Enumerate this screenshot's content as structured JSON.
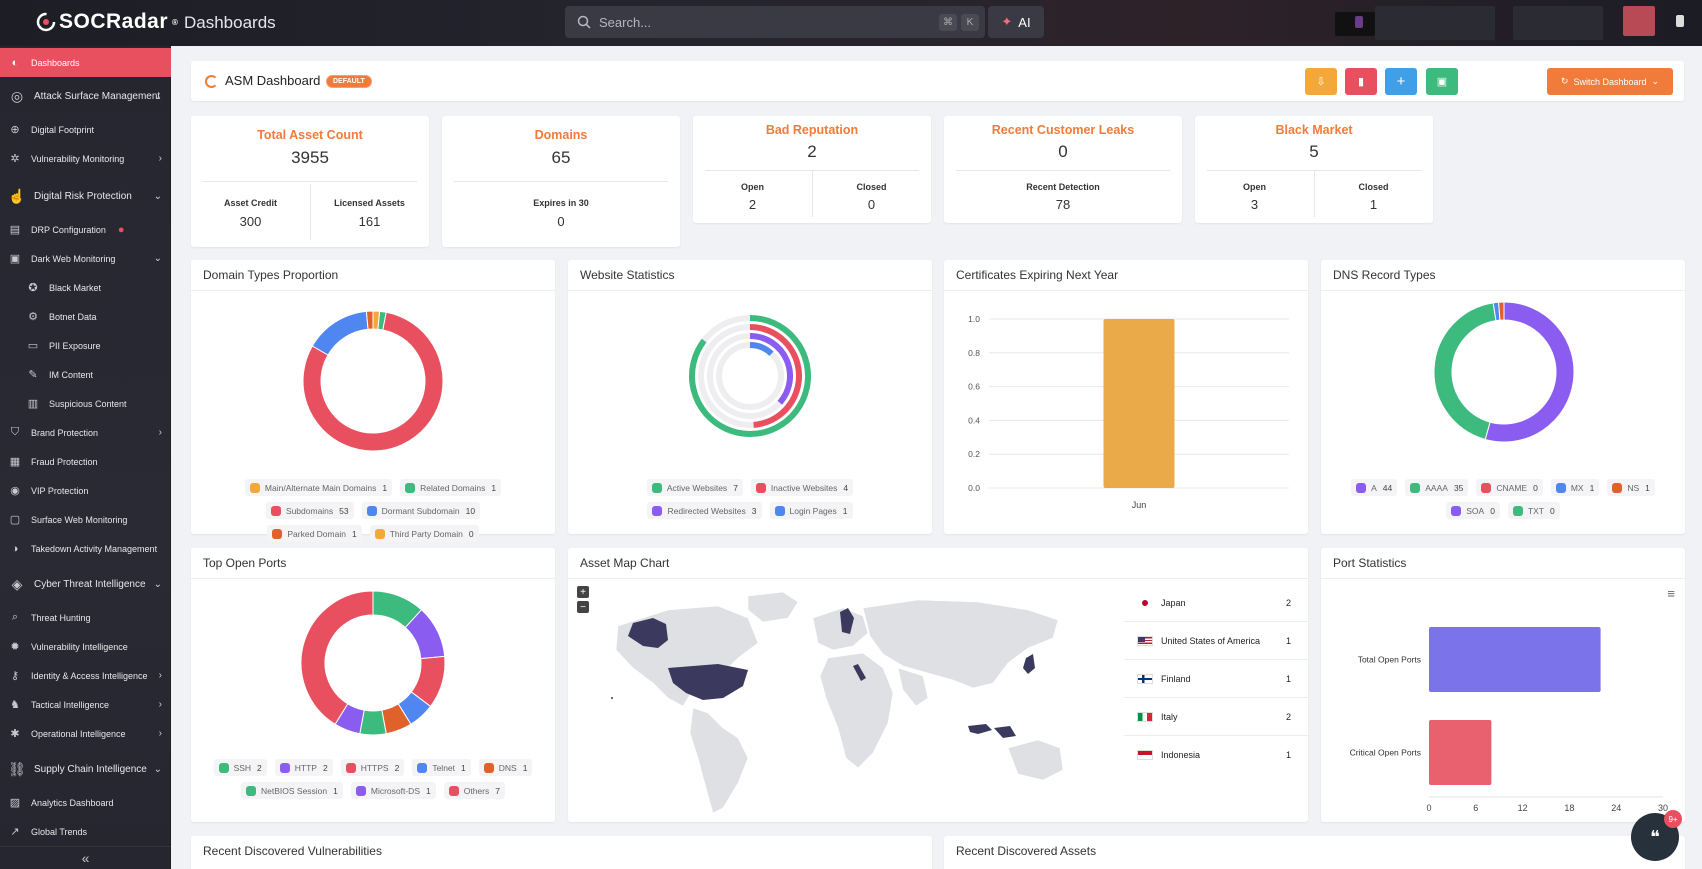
{
  "app": {
    "brand": "SOCRadar",
    "page_title": "Dashboards"
  },
  "search": {
    "placeholder": "Search...",
    "shortcut_cmd": "⌘",
    "shortcut_key": "K",
    "ai_label": "AI"
  },
  "sidebar": {
    "items": [
      {
        "label": "Dashboards",
        "icon": "radar-icon",
        "type": "active"
      },
      {
        "label": "Attack Surface Management",
        "icon": "target-icon",
        "type": "section",
        "chevron": "down"
      },
      {
        "label": "Digital Footprint",
        "icon": "globe-icon",
        "type": "item"
      },
      {
        "label": "Vulnerability Monitoring",
        "icon": "bug-icon",
        "type": "item",
        "chevron": "right"
      },
      {
        "label": "Digital Risk Protection",
        "icon": "fingerprint-icon",
        "type": "section",
        "chevron": "down"
      },
      {
        "label": "DRP Configuration",
        "icon": "config-icon",
        "type": "item",
        "dot": true
      },
      {
        "label": "Dark Web Monitoring",
        "icon": "mask-icon",
        "type": "item",
        "chevron": "down"
      },
      {
        "label": "Black Market",
        "icon": "market-icon",
        "type": "sub"
      },
      {
        "label": "Botnet Data",
        "icon": "botnet-icon",
        "type": "sub"
      },
      {
        "label": "PII Exposure",
        "icon": "id-card-icon",
        "type": "sub"
      },
      {
        "label": "IM Content",
        "icon": "chat-icon",
        "type": "sub"
      },
      {
        "label": "Suspicious Content",
        "icon": "file-icon",
        "type": "sub"
      },
      {
        "label": "Brand Protection",
        "icon": "shield-icon",
        "type": "item",
        "chevron": "right"
      },
      {
        "label": "Fraud Protection",
        "icon": "fraud-icon",
        "type": "item"
      },
      {
        "label": "VIP Protection",
        "icon": "vip-icon",
        "type": "item"
      },
      {
        "label": "Surface Web Monitoring",
        "icon": "monitor-icon",
        "type": "item"
      },
      {
        "label": "Takedown Activity Management",
        "icon": "takedown-icon",
        "type": "item"
      },
      {
        "label": "Cyber Threat Intelligence",
        "icon": "brain-icon",
        "type": "section",
        "chevron": "down"
      },
      {
        "label": "Threat Hunting",
        "icon": "search-icon",
        "type": "item"
      },
      {
        "label": "Vulnerability Intelligence",
        "icon": "gear-icon",
        "type": "item"
      },
      {
        "label": "Identity & Access Intelligence",
        "icon": "key-icon",
        "type": "item",
        "chevron": "right"
      },
      {
        "label": "Tactical Intelligence",
        "icon": "chess-icon",
        "type": "item",
        "chevron": "right"
      },
      {
        "label": "Operational Intelligence",
        "icon": "cog-icon",
        "type": "item",
        "chevron": "right"
      },
      {
        "label": "Supply Chain Intelligence",
        "icon": "chain-icon",
        "type": "section",
        "chevron": "down"
      },
      {
        "label": "Analytics Dashboard",
        "icon": "chart-icon",
        "type": "item"
      },
      {
        "label": "Global Trends",
        "icon": "trend-icon",
        "type": "item"
      }
    ]
  },
  "header": {
    "title": "ASM Dashboard",
    "badge": "DEFAULT",
    "switch_label": "Switch Dashboard",
    "colors": {
      "pin": "#f4a83a",
      "delete": "#e9505f",
      "add": "#3fa0e8",
      "save": "#3dba7d",
      "switch": "#f07b3a"
    }
  },
  "stats": {
    "total_asset": {
      "title": "Total Asset Count",
      "value": "3955",
      "l1": "Asset Credit",
      "v1": "300",
      "l2": "Licensed Assets",
      "v2": "161"
    },
    "domains": {
      "title": "Domains",
      "value": "65",
      "l1": "Expires in 30",
      "v1": "0"
    },
    "bad_rep": {
      "title": "Bad Reputation",
      "value": "2",
      "l1": "Open",
      "v1": "2",
      "l2": "Closed",
      "v2": "0"
    },
    "leaks": {
      "title": "Recent Customer Leaks",
      "value": "0",
      "l1": "Recent Detection",
      "v1": "78"
    },
    "black_market": {
      "title": "Black Market",
      "value": "5",
      "l1": "Open",
      "v1": "3",
      "l2": "Closed",
      "v2": "1"
    }
  },
  "cards": {
    "domain_types": "Domain Types Proportion",
    "website_stats": "Website Statistics",
    "certificates": "Certificates Expiring Next Year",
    "dns": "DNS Record Types",
    "ports": "Top Open Ports",
    "map": "Asset Map Chart",
    "port_stats": "Port Statistics",
    "recent_vulns": "Recent Discovered Vulnerabilities",
    "recent_assets": "Recent Discovered Assets"
  },
  "chart_data": [
    {
      "type": "pie",
      "id": "domain_types",
      "categories": [
        "Main/Alternate Main Domains",
        "Related Domains",
        "Subdomains",
        "Dormant Subdomain",
        "Parked Domain",
        "Third Party Domain"
      ],
      "values": [
        1,
        1,
        53,
        10,
        1,
        0
      ],
      "colors": [
        "#f4a83a",
        "#3dba7d",
        "#e9505f",
        "#4f86f0",
        "#e0622a",
        "#f4a83a"
      ]
    },
    {
      "type": "pie",
      "id": "website_stats",
      "categories": [
        "Active Websites",
        "Inactive Websites",
        "Redirected Websites",
        "Login Pages"
      ],
      "values": [
        7,
        4,
        3,
        1
      ],
      "colors": [
        "#3dba7d",
        "#e9505f",
        "#8a5cf0",
        "#4f86f0"
      ]
    },
    {
      "type": "bar",
      "id": "certificates",
      "categories": [
        "Jun"
      ],
      "values": [
        1.0
      ],
      "ylim": [
        0,
        1.0
      ],
      "yticks": [
        "0.0",
        "0.2",
        "0.4",
        "0.6",
        "0.8",
        "1.0"
      ],
      "colors": [
        "#eaaa4a"
      ]
    },
    {
      "type": "pie",
      "id": "dns",
      "categories": [
        "A",
        "AAAA",
        "CNAME",
        "MX",
        "NS",
        "SOA",
        "TXT"
      ],
      "values": [
        44,
        35,
        0,
        1,
        1,
        0,
        0
      ],
      "colors": [
        "#8a5cf0",
        "#3dba7d",
        "#e9505f",
        "#4f86f0",
        "#e0622a",
        "#8a5cf0",
        "#3dba7d"
      ]
    },
    {
      "type": "pie",
      "id": "ports",
      "categories": [
        "SSH",
        "HTTP",
        "HTTPS",
        "Telnet",
        "DNS",
        "NetBIOS Session",
        "Microsoft-DS",
        "Others"
      ],
      "values": [
        2,
        2,
        2,
        1,
        1,
        1,
        1,
        7
      ],
      "colors": [
        "#3dba7d",
        "#8a5cf0",
        "#e9505f",
        "#4f86f0",
        "#e0622a",
        "#3dba7d",
        "#8a5cf0",
        "#e9505f"
      ]
    },
    {
      "type": "bar",
      "id": "port_stats",
      "orientation": "horizontal",
      "categories": [
        "Total Open Ports",
        "Critical Open Ports"
      ],
      "values": [
        22,
        8
      ],
      "xlim": [
        0,
        30
      ],
      "xticks": [
        "0",
        "6",
        "12",
        "18",
        "24",
        "30"
      ],
      "colors": [
        "#7b73ea",
        "#e9606e"
      ]
    }
  ],
  "map": {
    "countries": [
      {
        "name": "Japan",
        "count": "2",
        "flag": "japan-flag"
      },
      {
        "name": "United States of America",
        "count": "1",
        "flag": "us-flag"
      },
      {
        "name": "Finland",
        "count": "1",
        "flag": "finland-flag"
      },
      {
        "name": "Italy",
        "count": "2",
        "flag": "italy-flag"
      },
      {
        "name": "Indonesia",
        "count": "1",
        "flag": "indonesia-flag"
      }
    ],
    "zoom_in": "+",
    "zoom_out": "−"
  },
  "help": {
    "badge": "9+"
  }
}
